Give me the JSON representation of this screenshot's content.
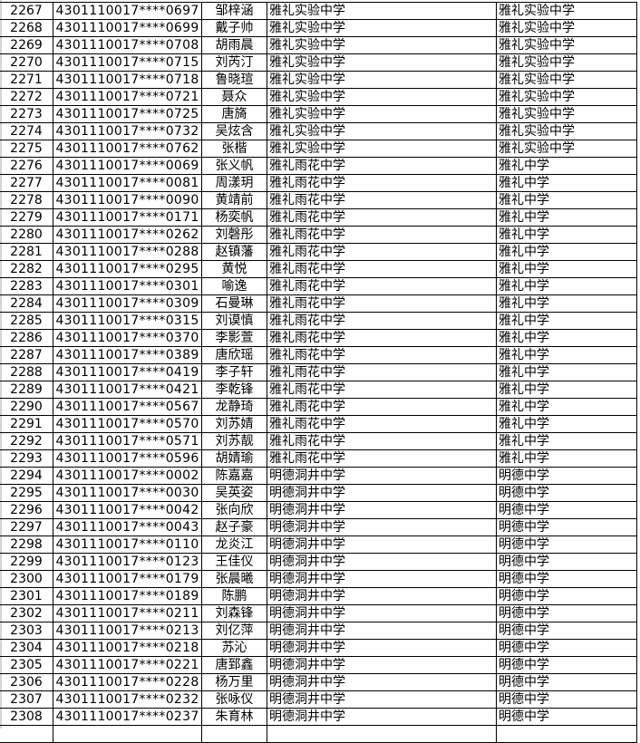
{
  "rows": [
    [
      "2267",
      "4301110017****0697",
      "邹梓涵",
      "雅礼实验中学",
      "雅礼实验中学"
    ],
    [
      "2268",
      "4301110017****0699",
      "戴子帅",
      "雅礼实验中学",
      "雅礼实验中学"
    ],
    [
      "2269",
      "4301110017****0708",
      "胡雨晨",
      "雅礼实验中学",
      "雅礼实验中学"
    ],
    [
      "2270",
      "4301110017****0715",
      "刘芮汀",
      "雅礼实验中学",
      "雅礼实验中学"
    ],
    [
      "2271",
      "4301110017****0718",
      "鲁晓瑄",
      "雅礼实验中学",
      "雅礼实验中学"
    ],
    [
      "2272",
      "4301110017****0721",
      "聂众",
      "雅礼实验中学",
      "雅礼实验中学"
    ],
    [
      "2273",
      "4301110017****0725",
      "唐旖",
      "雅礼实验中学",
      "雅礼实验中学"
    ],
    [
      "2274",
      "4301110017****0732",
      "吴炫含",
      "雅礼实验中学",
      "雅礼实验中学"
    ],
    [
      "2275",
      "4301110017****0762",
      "张楷",
      "雅礼实验中学",
      "雅礼实验中学"
    ],
    [
      "2276",
      "4301110017****0069",
      "张义帆",
      "雅礼雨花中学",
      "雅礼中学"
    ],
    [
      "2277",
      "4301110017****0081",
      "周漾玥",
      "雅礼雨花中学",
      "雅礼中学"
    ],
    [
      "2278",
      "4301110017****0090",
      "黄靖前",
      "雅礼雨花中学",
      "雅礼中学"
    ],
    [
      "2279",
      "4301110017****0171",
      "杨奕帆",
      "雅礼雨花中学",
      "雅礼中学"
    ],
    [
      "2280",
      "4301110017****0262",
      "刘磬彤",
      "雅礼雨花中学",
      "雅礼中学"
    ],
    [
      "2281",
      "4301110017****0288",
      "赵镇藩",
      "雅礼雨花中学",
      "雅礼中学"
    ],
    [
      "2282",
      "4301110017****0295",
      "黄悦",
      "雅礼雨花中学",
      "雅礼中学"
    ],
    [
      "2283",
      "4301110017****0301",
      "喻逸",
      "雅礼雨花中学",
      "雅礼中学"
    ],
    [
      "2284",
      "4301110017****0309",
      "石曼琳",
      "雅礼雨花中学",
      "雅礼中学"
    ],
    [
      "2285",
      "4301110017****0315",
      "刘谟慎",
      "雅礼雨花中学",
      "雅礼中学"
    ],
    [
      "2286",
      "4301110017****0370",
      "李影萱",
      "雅礼雨花中学",
      "雅礼中学"
    ],
    [
      "2287",
      "4301110017****0389",
      "唐欣瑶",
      "雅礼雨花中学",
      "雅礼中学"
    ],
    [
      "2288",
      "4301110017****0419",
      "李子轩",
      "雅礼雨花中学",
      "雅礼中学"
    ],
    [
      "2289",
      "4301110017****0421",
      "李乾锋",
      "雅礼雨花中学",
      "雅礼中学"
    ],
    [
      "2290",
      "4301110017****0567",
      "龙静琦",
      "雅礼雨花中学",
      "雅礼中学"
    ],
    [
      "2291",
      "4301110017****0570",
      "刘苏婧",
      "雅礼雨花中学",
      "雅礼中学"
    ],
    [
      "2292",
      "4301110017****0571",
      "刘苏靓",
      "雅礼雨花中学",
      "雅礼中学"
    ],
    [
      "2293",
      "4301110017****0596",
      "胡婧瑜",
      "雅礼雨花中学",
      "雅礼中学"
    ],
    [
      "2294",
      "4301110017****0002",
      "陈嘉嘉",
      "明德洞井中学",
      "明德中学"
    ],
    [
      "2295",
      "4301110017****0030",
      "吴英姿",
      "明德洞井中学",
      "明德中学"
    ],
    [
      "2296",
      "4301110017****0042",
      "张向欣",
      "明德洞井中学",
      "明德中学"
    ],
    [
      "2297",
      "4301110017****0043",
      "赵子豪",
      "明德洞井中学",
      "明德中学"
    ],
    [
      "2298",
      "4301110017****0110",
      "龙炎江",
      "明德洞井中学",
      "明德中学"
    ],
    [
      "2299",
      "4301110017****0123",
      "王佳仪",
      "明德洞井中学",
      "明德中学"
    ],
    [
      "2300",
      "4301110017****0179",
      "张晨曦",
      "明德洞井中学",
      "明德中学"
    ],
    [
      "2301",
      "4301110017****0189",
      "陈鹏",
      "明德洞井中学",
      "明德中学"
    ],
    [
      "2302",
      "4301110017****0211",
      "刘森锋",
      "明德洞井中学",
      "明德中学"
    ],
    [
      "2303",
      "4301110017****0213",
      "刘亿萍",
      "明德洞井中学",
      "明德中学"
    ],
    [
      "2304",
      "4301110017****0218",
      "苏沁",
      "明德洞井中学",
      "明德中学"
    ],
    [
      "2305",
      "4301110017****0221",
      "唐郅鑫",
      "明德洞井中学",
      "明德中学"
    ],
    [
      "2306",
      "4301110017****0228",
      "杨万里",
      "明德洞井中学",
      "明德中学"
    ],
    [
      "2307",
      "4301110017****0232",
      "张咏仪",
      "明德洞井中学",
      "明德中学"
    ],
    [
      "2308",
      "4301110017****0237",
      "朱育林",
      "明德洞井中学",
      "明德中学"
    ]
  ]
}
